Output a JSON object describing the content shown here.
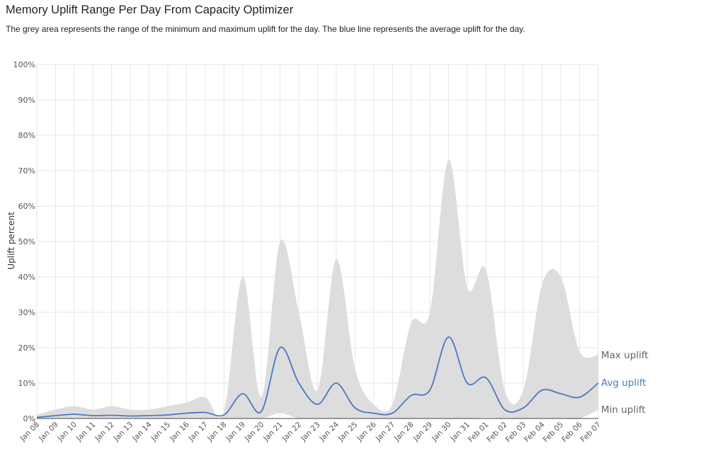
{
  "header": {
    "title": "Memory Uplift Range Per Day From Capacity Optimizer",
    "subtitle": "The grey area represents the range of the minimum and maximum uplift for the day. The blue line represents the average uplift for the day."
  },
  "colors": {
    "range_fill": "#dddddd",
    "avg_line": "#4a78c2",
    "grid": "#e6e6e6",
    "axis": "#444444",
    "label_grey": "#666666"
  },
  "chart_data": {
    "type": "area",
    "ylabel": "Uplift percent",
    "ylim": [
      0,
      100
    ],
    "y_ticks": [
      "0%",
      "10%",
      "20%",
      "30%",
      "40%",
      "50%",
      "60%",
      "70%",
      "80%",
      "90%",
      "100%"
    ],
    "categories": [
      "Jan 08",
      "Jan 09",
      "Jan 10",
      "Jan 11",
      "Jan 12",
      "Jan 13",
      "Jan 14",
      "Jan 15",
      "Jan 16",
      "Jan 17",
      "Jan 18",
      "Jan 19",
      "Jan 20",
      "Jan 21",
      "Jan 22",
      "Jan 23",
      "Jan 24",
      "Jan 25",
      "Jan 26",
      "Jan 27",
      "Jan 28",
      "Jan 29",
      "Jan 30",
      "Jan 31",
      "Feb 01",
      "Feb 02",
      "Feb 03",
      "Feb 04",
      "Feb 05",
      "Feb 06",
      "Feb 07"
    ],
    "series": [
      {
        "name": "Max uplift",
        "values": [
          1,
          2.5,
          3.5,
          2.5,
          3.5,
          2.5,
          2.5,
          3.5,
          4.5,
          6,
          2,
          40,
          6,
          50,
          30,
          8,
          45,
          14,
          4,
          4,
          27,
          30,
          73,
          37,
          42,
          8,
          8,
          38,
          40,
          19,
          18
        ]
      },
      {
        "name": "Avg uplift",
        "values": [
          0.3,
          0.8,
          1.2,
          0.8,
          0.9,
          0.7,
          0.8,
          1,
          1.5,
          1.7,
          1,
          7,
          2,
          20,
          10,
          4,
          10,
          3,
          1.5,
          1.5,
          6.5,
          8,
          23,
          10,
          11.5,
          2.5,
          3,
          8,
          7,
          6,
          10
        ]
      },
      {
        "name": "Min uplift",
        "values": [
          0,
          0,
          0,
          0,
          0,
          0,
          0,
          0,
          0,
          0,
          0,
          0,
          0,
          1.5,
          0,
          0,
          0,
          0,
          0,
          0,
          0,
          0,
          0,
          0,
          0.3,
          0,
          0,
          0,
          0,
          0,
          2.5
        ]
      }
    ],
    "grid": true,
    "legend": "end-labels-right"
  }
}
